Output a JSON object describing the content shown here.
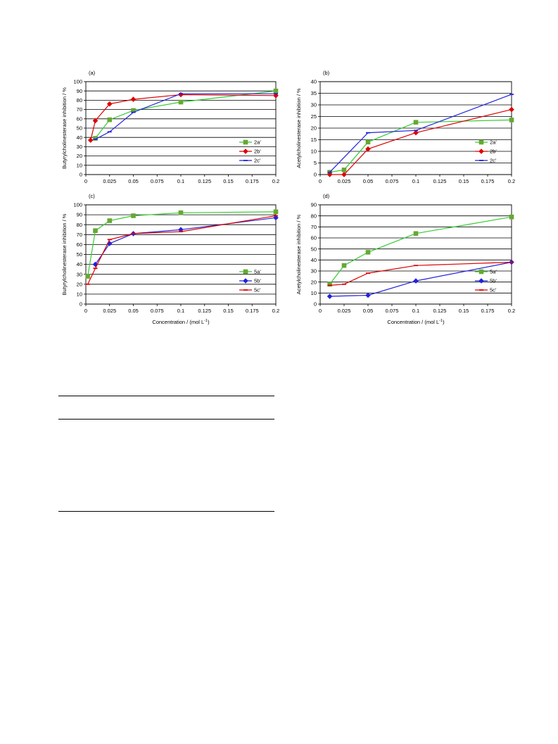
{
  "colors": {
    "green": "#33cc33",
    "red": "#dd0000",
    "blue": "#2222dd",
    "grid": "#000000",
    "marker_green": "#66a832"
  },
  "chart_data": [
    {
      "type": "line",
      "panel_label": "(a)",
      "ylabel": "Butyrylcholinesterase inhibition / %",
      "xlabel": "",
      "xlim": [
        0,
        0.2
      ],
      "ylim": [
        0,
        100
      ],
      "x_ticks": [
        "0",
        "0.025",
        "0.05",
        "0.075",
        "0.1",
        "0.125",
        "0.15",
        "0.175",
        "0.2"
      ],
      "y_ticks": [
        "0",
        "10",
        "20",
        "30",
        "40",
        "50",
        "60",
        "70",
        "80",
        "90",
        "100"
      ],
      "grid": "horizontal",
      "legend_position": "right",
      "series": [
        {
          "name": "2a'",
          "color": "#33cc33",
          "marker": "square",
          "x": [
            0.01,
            0.025,
            0.05,
            0.1,
            0.2
          ],
          "y": [
            39,
            59,
            69,
            78,
            90
          ]
        },
        {
          "name": "2b'",
          "color": "#dd0000",
          "marker": "diamond",
          "x": [
            0.005,
            0.01,
            0.025,
            0.05,
            0.1,
            0.2
          ],
          "y": [
            37,
            58,
            76,
            81,
            86,
            85
          ]
        },
        {
          "name": "2c'",
          "color": "#2222dd",
          "marker": "dash",
          "x": [
            0.01,
            0.025,
            0.05,
            0.1,
            0.2
          ],
          "y": [
            38,
            46,
            67,
            87,
            87
          ]
        }
      ]
    },
    {
      "type": "line",
      "panel_label": "(b)",
      "ylabel": "Acetylcholinesterase inhibition / %",
      "xlabel": "",
      "xlim": [
        0,
        0.2
      ],
      "ylim": [
        0,
        40
      ],
      "x_ticks": [
        "0",
        "0.025",
        "0.05",
        "0.075",
        "0.1",
        "0.125",
        "0.15",
        "0.175",
        "0.2"
      ],
      "y_ticks": [
        "0",
        "5",
        "10",
        "15",
        "20",
        "25",
        "30",
        "35",
        "40"
      ],
      "grid": "horizontal",
      "legend_position": "right",
      "series": [
        {
          "name": "2a'",
          "color": "#33cc33",
          "marker": "square",
          "x": [
            0.01,
            0.025,
            0.05,
            0.1,
            0.2
          ],
          "y": [
            1,
            2,
            14,
            22.5,
            23.5
          ]
        },
        {
          "name": "2b'",
          "color": "#dd0000",
          "marker": "diamond",
          "x": [
            0.01,
            0.025,
            0.05,
            0.1,
            0.2
          ],
          "y": [
            0,
            0,
            11,
            18,
            28
          ]
        },
        {
          "name": "2c'",
          "color": "#2222dd",
          "marker": "dash",
          "x": [
            0.01,
            0.05,
            0.1,
            0.2
          ],
          "y": [
            1,
            18,
            19,
            34.5
          ]
        }
      ]
    },
    {
      "type": "line",
      "panel_label": "(c)",
      "ylabel": "Butyrylcholinesterase inhibition / %",
      "xlabel": "Concentration / (mol L",
      "xlabel_sup": "-1",
      "xlabel_end": ")",
      "xlim": [
        0,
        0.2
      ],
      "ylim": [
        0,
        100
      ],
      "x_ticks": [
        "0",
        "0.025",
        "0.05",
        "0.075",
        "0.1",
        "0.125",
        "0.15",
        "0.175",
        "0.2"
      ],
      "y_ticks": [
        "0",
        "10",
        "20",
        "30",
        "40",
        "50",
        "60",
        "70",
        "80",
        "90",
        "100"
      ],
      "grid": "horizontal",
      "legend_position": "right",
      "series": [
        {
          "name": "5a'",
          "color": "#33cc33",
          "marker": "square",
          "x": [
            0.002,
            0.01,
            0.025,
            0.05,
            0.1,
            0.2
          ],
          "y": [
            28,
            74,
            84,
            89,
            92,
            93
          ]
        },
        {
          "name": "5b'",
          "color": "#2222dd",
          "marker": "diamond",
          "x": [
            0.01,
            0.025,
            0.05,
            0.1,
            0.2
          ],
          "y": [
            40,
            61,
            71,
            75,
            87
          ]
        },
        {
          "name": "5c'",
          "color": "#dd0000",
          "marker": "dash",
          "x": [
            0.002,
            0.01,
            0.025,
            0.05,
            0.1,
            0.2
          ],
          "y": [
            20,
            36,
            65,
            71,
            73,
            89
          ]
        }
      ]
    },
    {
      "type": "line",
      "panel_label": "(d)",
      "ylabel": "Acetylcholinesterase inhibition / %",
      "xlabel": "Concentration / (mol L",
      "xlabel_sup": "-1",
      "xlabel_end": ")",
      "xlim": [
        0,
        0.2
      ],
      "ylim": [
        0,
        90
      ],
      "x_ticks": [
        "0",
        "0.025",
        "0.05",
        "0.075",
        "0.1",
        "0.125",
        "0.15",
        "0.175",
        "0.2"
      ],
      "y_ticks": [
        "0",
        "10",
        "20",
        "30",
        "40",
        "50",
        "60",
        "70",
        "80",
        "90"
      ],
      "grid": "horizontal",
      "legend_position": "right",
      "series": [
        {
          "name": "5a'",
          "color": "#33cc33",
          "marker": "square",
          "x": [
            0.01,
            0.025,
            0.05,
            0.1,
            0.2
          ],
          "y": [
            18,
            35,
            47,
            64,
            79
          ]
        },
        {
          "name": "5b'",
          "color": "#2222dd",
          "marker": "diamond",
          "x": [
            0.01,
            0.05,
            0.1,
            0.2
          ],
          "y": [
            7,
            8,
            21,
            38
          ]
        },
        {
          "name": "5c'",
          "color": "#dd0000",
          "marker": "dash",
          "x": [
            0.01,
            0.025,
            0.05,
            0.1,
            0.2
          ],
          "y": [
            17,
            18,
            28,
            35,
            38
          ]
        }
      ]
    }
  ]
}
